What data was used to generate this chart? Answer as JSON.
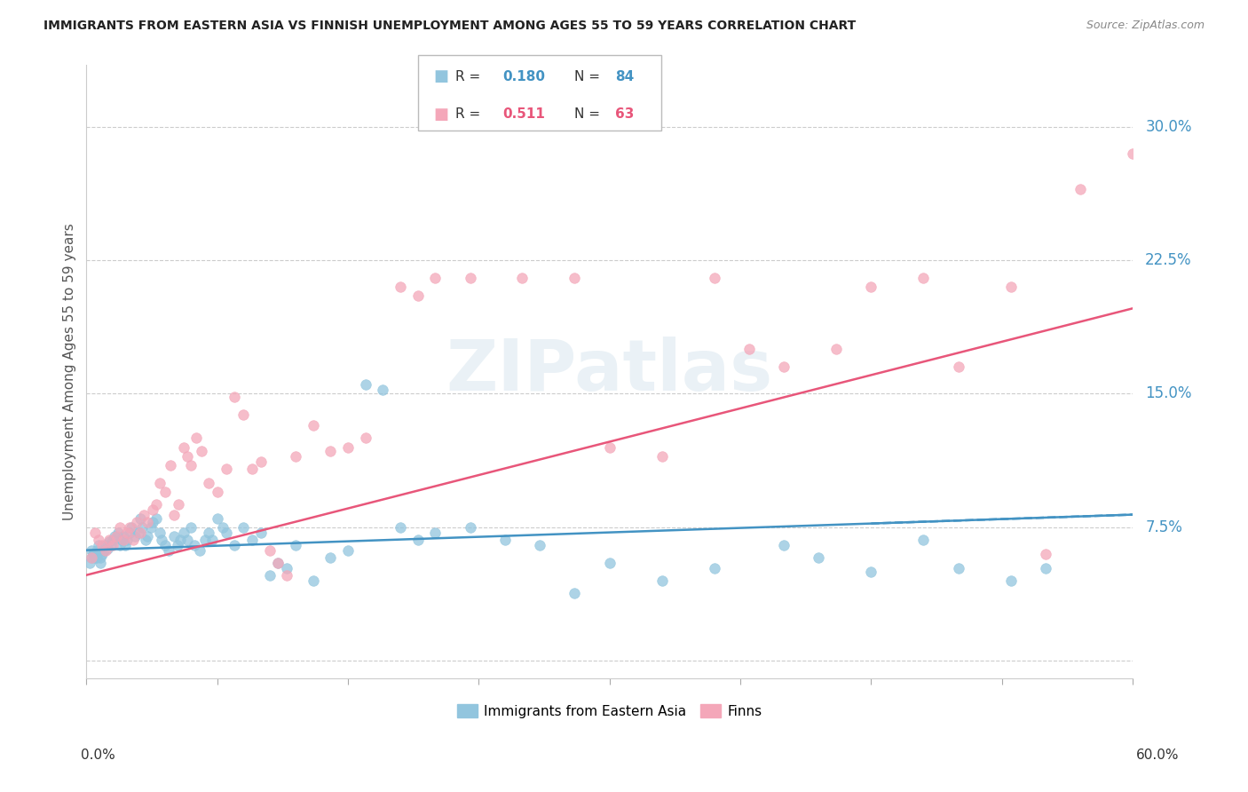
{
  "title": "IMMIGRANTS FROM EASTERN ASIA VS FINNISH UNEMPLOYMENT AMONG AGES 55 TO 59 YEARS CORRELATION CHART",
  "source": "Source: ZipAtlas.com",
  "ylabel": "Unemployment Among Ages 55 to 59 years",
  "yticks": [
    0.0,
    0.075,
    0.15,
    0.225,
    0.3
  ],
  "ytick_labels": [
    "",
    "7.5%",
    "15.0%",
    "22.5%",
    "30.0%"
  ],
  "xlim": [
    0.0,
    0.6
  ],
  "ylim": [
    -0.01,
    0.335
  ],
  "blue_color": "#92c5de",
  "pink_color": "#f4a7b9",
  "blue_trend_color": "#4393c3",
  "pink_trend_color": "#e8567a",
  "blue_scatter_x": [
    0.002,
    0.003,
    0.004,
    0.005,
    0.006,
    0.007,
    0.008,
    0.009,
    0.01,
    0.011,
    0.012,
    0.013,
    0.014,
    0.015,
    0.016,
    0.018,
    0.019,
    0.02,
    0.021,
    0.022,
    0.023,
    0.025,
    0.026,
    0.028,
    0.03,
    0.031,
    0.032,
    0.034,
    0.035,
    0.037,
    0.038,
    0.04,
    0.042,
    0.043,
    0.045,
    0.047,
    0.05,
    0.052,
    0.054,
    0.056,
    0.058,
    0.06,
    0.062,
    0.065,
    0.068,
    0.07,
    0.072,
    0.075,
    0.078,
    0.08,
    0.085,
    0.09,
    0.095,
    0.1,
    0.105,
    0.11,
    0.115,
    0.12,
    0.13,
    0.14,
    0.15,
    0.16,
    0.17,
    0.18,
    0.19,
    0.2,
    0.22,
    0.24,
    0.26,
    0.28,
    0.3,
    0.33,
    0.36,
    0.4,
    0.42,
    0.45,
    0.48,
    0.5,
    0.53,
    0.55,
    0.003,
    0.004,
    0.006,
    0.008
  ],
  "blue_scatter_y": [
    0.055,
    0.058,
    0.06,
    0.058,
    0.062,
    0.065,
    0.058,
    0.06,
    0.062,
    0.065,
    0.063,
    0.067,
    0.065,
    0.068,
    0.07,
    0.072,
    0.065,
    0.068,
    0.07,
    0.065,
    0.068,
    0.072,
    0.075,
    0.07,
    0.072,
    0.08,
    0.075,
    0.068,
    0.07,
    0.075,
    0.078,
    0.08,
    0.072,
    0.068,
    0.065,
    0.062,
    0.07,
    0.065,
    0.068,
    0.072,
    0.068,
    0.075,
    0.065,
    0.062,
    0.068,
    0.072,
    0.068,
    0.08,
    0.075,
    0.072,
    0.065,
    0.075,
    0.068,
    0.072,
    0.048,
    0.055,
    0.052,
    0.065,
    0.045,
    0.058,
    0.062,
    0.155,
    0.152,
    0.075,
    0.068,
    0.072,
    0.075,
    0.068,
    0.065,
    0.038,
    0.055,
    0.045,
    0.052,
    0.065,
    0.058,
    0.05,
    0.068,
    0.052,
    0.045,
    0.052,
    0.062,
    0.06,
    0.058,
    0.055
  ],
  "pink_scatter_x": [
    0.003,
    0.005,
    0.007,
    0.009,
    0.011,
    0.013,
    0.015,
    0.017,
    0.019,
    0.021,
    0.023,
    0.025,
    0.027,
    0.029,
    0.031,
    0.033,
    0.035,
    0.038,
    0.04,
    0.042,
    0.045,
    0.048,
    0.05,
    0.053,
    0.056,
    0.058,
    0.06,
    0.063,
    0.066,
    0.07,
    0.075,
    0.08,
    0.085,
    0.09,
    0.095,
    0.1,
    0.105,
    0.11,
    0.115,
    0.12,
    0.13,
    0.14,
    0.15,
    0.16,
    0.18,
    0.19,
    0.2,
    0.22,
    0.25,
    0.28,
    0.3,
    0.33,
    0.36,
    0.38,
    0.4,
    0.43,
    0.45,
    0.48,
    0.5,
    0.53,
    0.55,
    0.57,
    0.6
  ],
  "pink_scatter_y": [
    0.058,
    0.072,
    0.068,
    0.065,
    0.062,
    0.068,
    0.065,
    0.07,
    0.075,
    0.068,
    0.072,
    0.075,
    0.068,
    0.078,
    0.072,
    0.082,
    0.078,
    0.085,
    0.088,
    0.1,
    0.095,
    0.11,
    0.082,
    0.088,
    0.12,
    0.115,
    0.11,
    0.125,
    0.118,
    0.1,
    0.095,
    0.108,
    0.148,
    0.138,
    0.108,
    0.112,
    0.062,
    0.055,
    0.048,
    0.115,
    0.132,
    0.118,
    0.12,
    0.125,
    0.21,
    0.205,
    0.215,
    0.215,
    0.215,
    0.215,
    0.12,
    0.115,
    0.215,
    0.175,
    0.165,
    0.175,
    0.21,
    0.215,
    0.165,
    0.21,
    0.06,
    0.265,
    0.285
  ],
  "blue_line_x": [
    0.0,
    0.6
  ],
  "blue_line_y": [
    0.062,
    0.082
  ],
  "pink_line_x": [
    0.0,
    0.6
  ],
  "pink_line_y": [
    0.048,
    0.198
  ],
  "watermark": "ZIPatlas"
}
